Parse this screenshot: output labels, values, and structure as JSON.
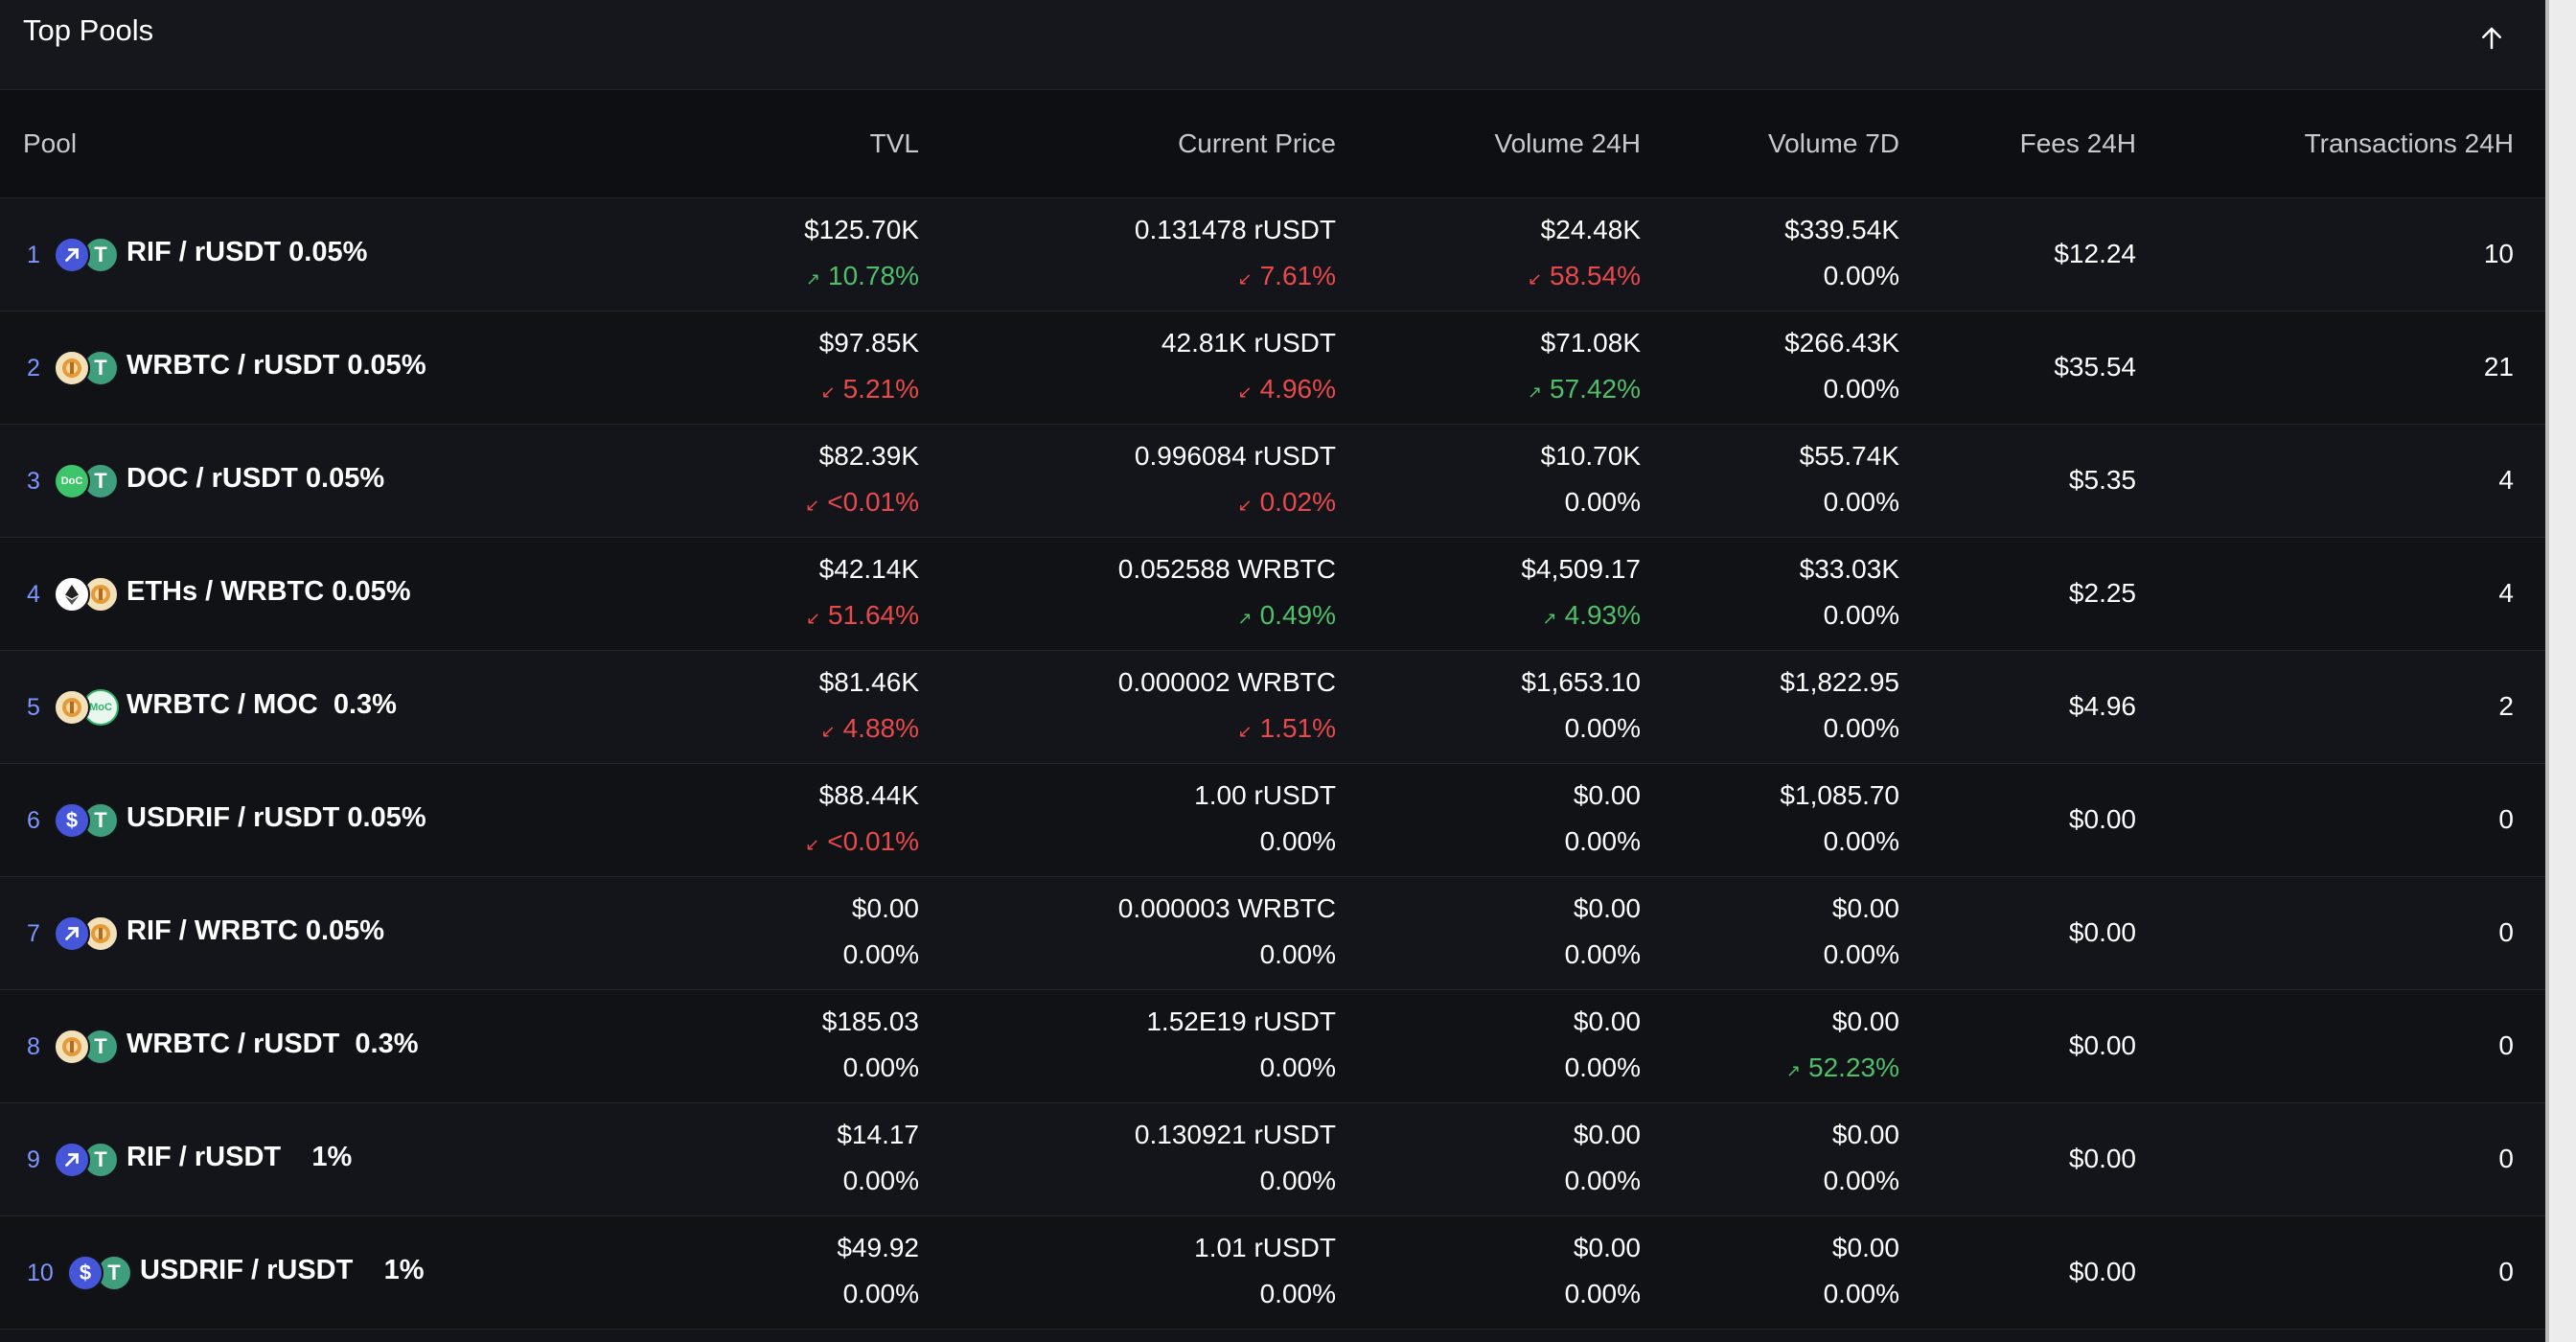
{
  "header": {
    "title": "Top Pools"
  },
  "columns": [
    "Pool",
    "TVL",
    "Current Price",
    "Volume 24H",
    "Volume 7D",
    "Fees 24H",
    "Transactions 24H"
  ],
  "rows": [
    {
      "rank": "1",
      "tokens": [
        "rif",
        "usdt"
      ],
      "pair": "RIF / rUSDT 0.05%",
      "tvl": "$125.70K",
      "tvl_change": "10.78%",
      "tvl_dir": "up",
      "price": "0.131478 rUSDT",
      "price_change": "7.61%",
      "price_dir": "down",
      "vol24": "$24.48K",
      "vol24_change": "58.54%",
      "vol24_dir": "down",
      "vol7": "$339.54K",
      "vol7_change": "0.00%",
      "vol7_dir": "none",
      "fees": "$12.24",
      "tx": "10"
    },
    {
      "rank": "2",
      "tokens": [
        "wrbtc",
        "usdt"
      ],
      "pair": "WRBTC / rUSDT 0.05%",
      "tvl": "$97.85K",
      "tvl_change": "5.21%",
      "tvl_dir": "down",
      "price": "42.81K rUSDT",
      "price_change": "4.96%",
      "price_dir": "down",
      "vol24": "$71.08K",
      "vol24_change": "57.42%",
      "vol24_dir": "up",
      "vol7": "$266.43K",
      "vol7_change": "0.00%",
      "vol7_dir": "none",
      "fees": "$35.54",
      "tx": "21"
    },
    {
      "rank": "3",
      "tokens": [
        "doc",
        "usdt"
      ],
      "pair": "DOC / rUSDT 0.05%",
      "tvl": "$82.39K",
      "tvl_change": "<0.01%",
      "tvl_dir": "down",
      "price": "0.996084 rUSDT",
      "price_change": "0.02%",
      "price_dir": "down",
      "vol24": "$10.70K",
      "vol24_change": "0.00%",
      "vol24_dir": "none",
      "vol7": "$55.74K",
      "vol7_change": "0.00%",
      "vol7_dir": "none",
      "fees": "$5.35",
      "tx": "4"
    },
    {
      "rank": "4",
      "tokens": [
        "eth",
        "wrbtc"
      ],
      "pair": "ETHs / WRBTC 0.05%",
      "tvl": "$42.14K",
      "tvl_change": "51.64%",
      "tvl_dir": "down",
      "price": "0.052588 WRBTC",
      "price_change": "0.49%",
      "price_dir": "up",
      "vol24": "$4,509.17",
      "vol24_change": "4.93%",
      "vol24_dir": "up",
      "vol7": "$33.03K",
      "vol7_change": "0.00%",
      "vol7_dir": "none",
      "fees": "$2.25",
      "tx": "4"
    },
    {
      "rank": "5",
      "tokens": [
        "wrbtc",
        "moc"
      ],
      "pair": "WRBTC / MOC  0.3%",
      "tvl": "$81.46K",
      "tvl_change": "4.88%",
      "tvl_dir": "down",
      "price": "0.000002 WRBTC",
      "price_change": "1.51%",
      "price_dir": "down",
      "vol24": "$1,653.10",
      "vol24_change": "0.00%",
      "vol24_dir": "none",
      "vol7": "$1,822.95",
      "vol7_change": "0.00%",
      "vol7_dir": "none",
      "fees": "$4.96",
      "tx": "2"
    },
    {
      "rank": "6",
      "tokens": [
        "usdrif",
        "usdt"
      ],
      "pair": "USDRIF / rUSDT 0.05%",
      "tvl": "$88.44K",
      "tvl_change": "<0.01%",
      "tvl_dir": "down",
      "price": "1.00 rUSDT",
      "price_change": "0.00%",
      "price_dir": "none",
      "vol24": "$0.00",
      "vol24_change": "0.00%",
      "vol24_dir": "none",
      "vol7": "$1,085.70",
      "vol7_change": "0.00%",
      "vol7_dir": "none",
      "fees": "$0.00",
      "tx": "0"
    },
    {
      "rank": "7",
      "tokens": [
        "rif",
        "wrbtc"
      ],
      "pair": "RIF / WRBTC 0.05%",
      "tvl": "$0.00",
      "tvl_change": "0.00%",
      "tvl_dir": "none",
      "price": "0.000003 WRBTC",
      "price_change": "0.00%",
      "price_dir": "none",
      "vol24": "$0.00",
      "vol24_change": "0.00%",
      "vol24_dir": "none",
      "vol7": "$0.00",
      "vol7_change": "0.00%",
      "vol7_dir": "none",
      "fees": "$0.00",
      "tx": "0"
    },
    {
      "rank": "8",
      "tokens": [
        "wrbtc",
        "usdt"
      ],
      "pair": "WRBTC / rUSDT  0.3%",
      "tvl": "$185.03",
      "tvl_change": "0.00%",
      "tvl_dir": "none",
      "price": "1.52E19 rUSDT",
      "price_change": "0.00%",
      "price_dir": "none",
      "vol24": "$0.00",
      "vol24_change": "0.00%",
      "vol24_dir": "none",
      "vol7": "$0.00",
      "vol7_change": "52.23%",
      "vol7_dir": "up",
      "fees": "$0.00",
      "tx": "0"
    },
    {
      "rank": "9",
      "tokens": [
        "rif",
        "usdt"
      ],
      "pair": "RIF / rUSDT    1%",
      "tvl": "$14.17",
      "tvl_change": "0.00%",
      "tvl_dir": "none",
      "price": "0.130921 rUSDT",
      "price_change": "0.00%",
      "price_dir": "none",
      "vol24": "$0.00",
      "vol24_change": "0.00%",
      "vol24_dir": "none",
      "vol7": "$0.00",
      "vol7_change": "0.00%",
      "vol7_dir": "none",
      "fees": "$0.00",
      "tx": "0"
    },
    {
      "rank": "10",
      "tokens": [
        "usdrif",
        "usdt"
      ],
      "pair": "USDRIF / rUSDT    1%",
      "tvl": "$49.92",
      "tvl_change": "0.00%",
      "tvl_dir": "none",
      "price": "1.01 rUSDT",
      "price_change": "0.00%",
      "price_dir": "none",
      "vol24": "$0.00",
      "vol24_change": "0.00%",
      "vol24_dir": "none",
      "vol7": "$0.00",
      "vol7_change": "0.00%",
      "vol7_dir": "none",
      "fees": "$0.00",
      "tx": "0"
    }
  ],
  "colors": {
    "up": "#4fbf6a",
    "down": "#e8494b",
    "rank": "#7f96ff",
    "background": "#12141a"
  },
  "icons": {
    "scroll_top": "arrow-up-icon",
    "trend_up": "arrow-up-right-icon",
    "trend_down": "arrow-down-left-icon"
  }
}
